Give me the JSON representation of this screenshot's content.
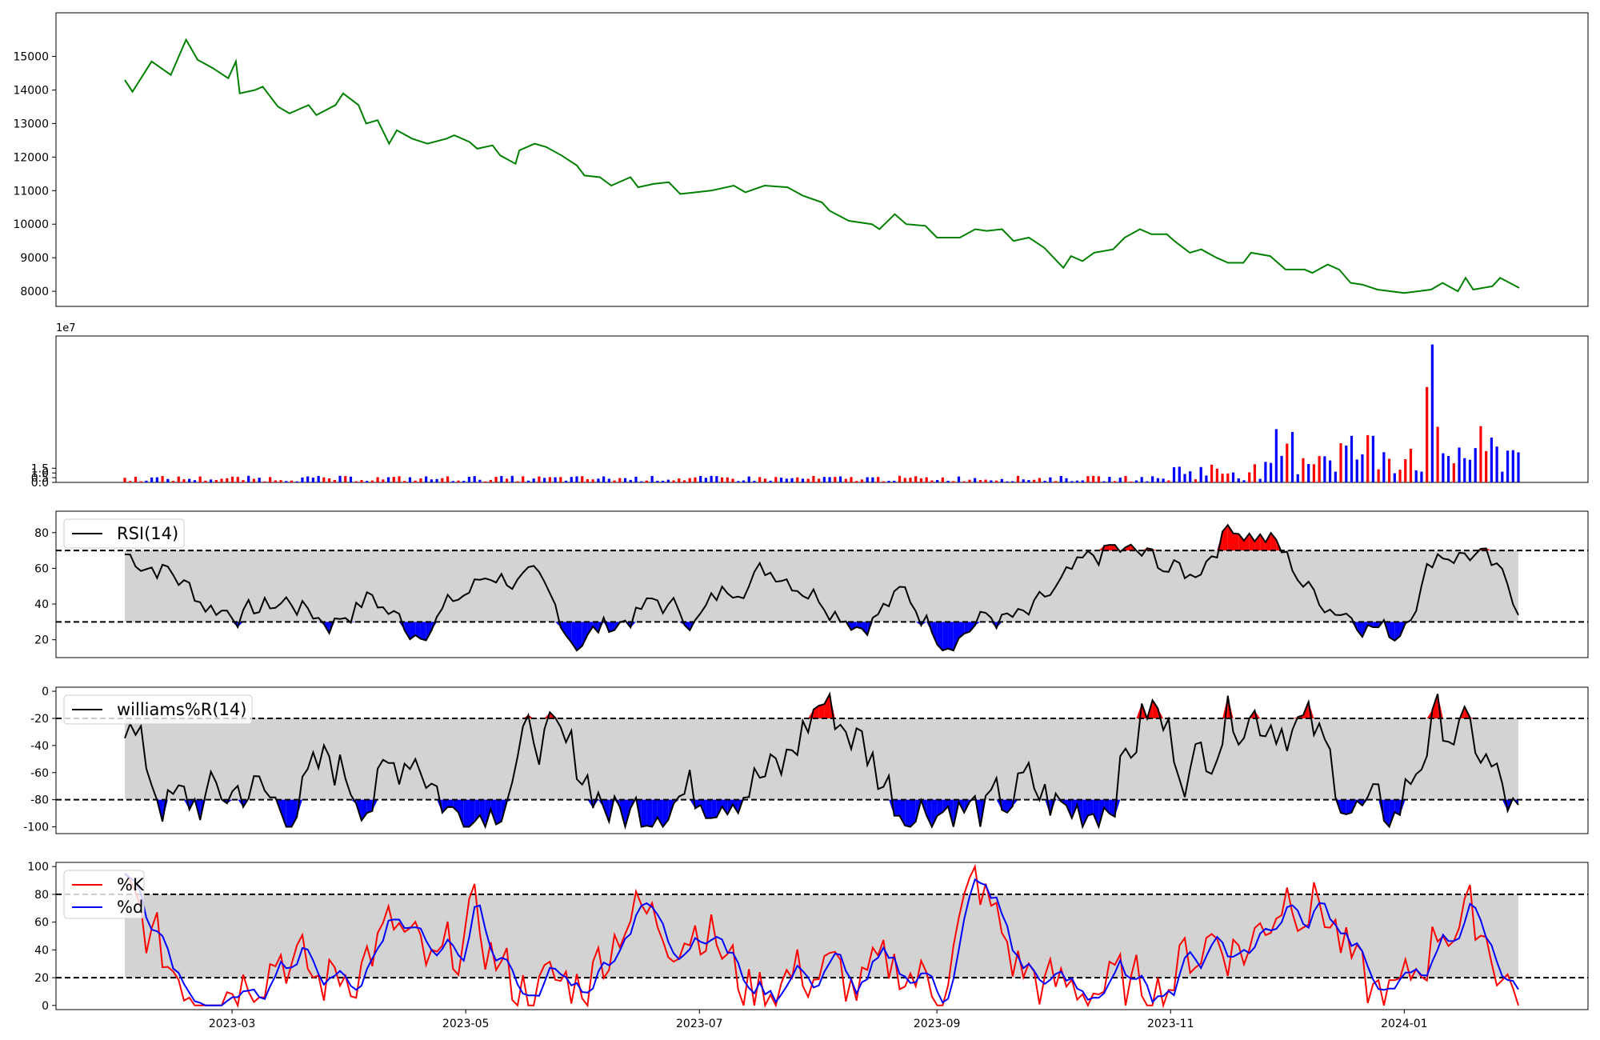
{
  "colors": {
    "price": "#008000",
    "up": "#ff0000",
    "down": "#0000ff",
    "line": "#000000",
    "band": "#d3d3d3",
    "k": "#ff0000",
    "d": "#0000ff"
  },
  "chart_data": [
    {
      "type": "line",
      "panel": "price",
      "x_start": "2023-02-01",
      "x_end": "2024-01-31",
      "ylim": [
        7550,
        16300
      ],
      "yticks": [
        8000,
        9000,
        10000,
        11000,
        12000,
        13000,
        14000,
        15000
      ],
      "series": [
        {
          "points": [
            [
              "2023-02-01",
              14300
            ],
            [
              "2023-02-03",
              13950
            ],
            [
              "2023-02-08",
              14850
            ],
            [
              "2023-02-13",
              14450
            ],
            [
              "2023-02-17",
              15500
            ],
            [
              "2023-02-20",
              14900
            ],
            [
              "2023-02-24",
              14650
            ],
            [
              "2023-02-28",
              14350
            ],
            [
              "2023-03-02",
              14850
            ],
            [
              "2023-03-03",
              13900
            ],
            [
              "2023-03-07",
              14000
            ],
            [
              "2023-03-09",
              14100
            ],
            [
              "2023-03-13",
              13500
            ],
            [
              "2023-03-16",
              13300
            ],
            [
              "2023-03-21",
              13550
            ],
            [
              "2023-03-23",
              13250
            ],
            [
              "2023-03-28",
              13550
            ],
            [
              "2023-03-30",
              13900
            ],
            [
              "2023-04-03",
              13550
            ],
            [
              "2023-04-05",
              13000
            ],
            [
              "2023-04-08",
              13100
            ],
            [
              "2023-04-11",
              12400
            ],
            [
              "2023-04-13",
              12800
            ],
            [
              "2023-04-17",
              12550
            ],
            [
              "2023-04-21",
              12400
            ],
            [
              "2023-04-26",
              12550
            ],
            [
              "2023-04-28",
              12650
            ],
            [
              "2023-05-02",
              12450
            ],
            [
              "2023-05-04",
              12250
            ],
            [
              "2023-05-08",
              12350
            ],
            [
              "2023-05-10",
              12050
            ],
            [
              "2023-05-14",
              11800
            ],
            [
              "2023-05-15",
              12200
            ],
            [
              "2023-05-19",
              12400
            ],
            [
              "2023-05-22",
              12300
            ],
            [
              "2023-05-26",
              12050
            ],
            [
              "2023-05-30",
              11750
            ],
            [
              "2023-06-01",
              11450
            ],
            [
              "2023-06-05",
              11400
            ],
            [
              "2023-06-08",
              11150
            ],
            [
              "2023-06-13",
              11400
            ],
            [
              "2023-06-15",
              11100
            ],
            [
              "2023-06-19",
              11200
            ],
            [
              "2023-06-23",
              11250
            ],
            [
              "2023-06-26",
              10900
            ],
            [
              "2023-06-30",
              10950
            ],
            [
              "2023-07-04",
              11000
            ],
            [
              "2023-07-10",
              11150
            ],
            [
              "2023-07-13",
              10950
            ],
            [
              "2023-07-18",
              11150
            ],
            [
              "2023-07-24",
              11100
            ],
            [
              "2023-07-28",
              10850
            ],
            [
              "2023-08-02",
              10650
            ],
            [
              "2023-08-04",
              10400
            ],
            [
              "2023-08-09",
              10100
            ],
            [
              "2023-08-15",
              10000
            ],
            [
              "2023-08-17",
              9850
            ],
            [
              "2023-08-21",
              10300
            ],
            [
              "2023-08-24",
              10000
            ],
            [
              "2023-08-29",
              9950
            ],
            [
              "2023-09-01",
              9600
            ],
            [
              "2023-09-07",
              9600
            ],
            [
              "2023-09-11",
              9850
            ],
            [
              "2023-09-14",
              9800
            ],
            [
              "2023-09-18",
              9850
            ],
            [
              "2023-09-21",
              9500
            ],
            [
              "2023-09-25",
              9600
            ],
            [
              "2023-09-29",
              9300
            ],
            [
              "2023-10-04",
              8700
            ],
            [
              "2023-10-06",
              9050
            ],
            [
              "2023-10-09",
              8900
            ],
            [
              "2023-10-12",
              9150
            ],
            [
              "2023-10-17",
              9250
            ],
            [
              "2023-10-20",
              9600
            ],
            [
              "2023-10-24",
              9850
            ],
            [
              "2023-10-27",
              9700
            ],
            [
              "2023-10-31",
              9700
            ],
            [
              "2023-11-02",
              9500
            ],
            [
              "2023-11-06",
              9150
            ],
            [
              "2023-11-09",
              9250
            ],
            [
              "2023-11-13",
              9000
            ],
            [
              "2023-11-16",
              8850
            ],
            [
              "2023-11-20",
              8850
            ],
            [
              "2023-11-22",
              9150
            ],
            [
              "2023-11-27",
              9050
            ],
            [
              "2023-12-01",
              8650
            ],
            [
              "2023-12-06",
              8650
            ],
            [
              "2023-12-08",
              8550
            ],
            [
              "2023-12-12",
              8800
            ],
            [
              "2023-12-15",
              8650
            ],
            [
              "2023-12-18",
              8250
            ],
            [
              "2023-12-21",
              8200
            ],
            [
              "2023-12-25",
              8050
            ],
            [
              "2024-01-01",
              7950
            ],
            [
              "2024-01-08",
              8050
            ],
            [
              "2024-01-11",
              8250
            ],
            [
              "2024-01-15",
              8000
            ],
            [
              "2024-01-17",
              8400
            ],
            [
              "2024-01-19",
              8050
            ],
            [
              "2024-01-24",
              8150
            ],
            [
              "2024-01-26",
              8400
            ],
            [
              "2024-01-31",
              8100
            ]
          ]
        }
      ]
    },
    {
      "type": "bar",
      "panel": "volume",
      "ylim": [
        0,
        15.5
      ],
      "yticks": [
        0.0,
        0.5,
        1.0,
        1.5
      ],
      "y_multiplier": "1e7",
      "series": [
        {
          "name": "",
          "values": []
        }
      ]
    },
    {
      "type": "line",
      "panel": "rsi",
      "legend": "RSI(14)",
      "ylim": [
        10,
        92
      ],
      "yticks": [
        20,
        40,
        60,
        80
      ],
      "levels": [
        30,
        70
      ]
    },
    {
      "type": "line",
      "panel": "williams",
      "legend": "williams%R(14)",
      "ylim": [
        -105,
        3
      ],
      "yticks": [
        -100,
        -80,
        -60,
        -40,
        -20,
        0
      ],
      "levels": [
        -80,
        -20
      ]
    },
    {
      "type": "line",
      "panel": "stochastic",
      "legend": [
        "%K",
        "%d"
      ],
      "ylim": [
        -3,
        103
      ],
      "yticks": [
        0,
        20,
        40,
        60,
        80,
        100
      ],
      "levels": [
        20,
        80
      ],
      "xticks": [
        "2023-03",
        "2023-05",
        "2023-07",
        "2023-09",
        "2023-11",
        "2024-01"
      ]
    }
  ]
}
